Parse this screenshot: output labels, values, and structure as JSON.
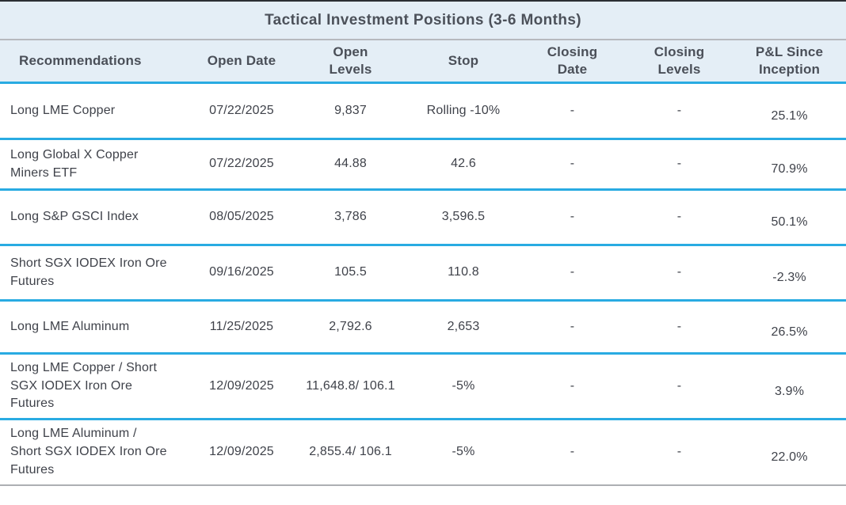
{
  "title": "Tactical Investment Positions (3-6 Months)",
  "columns": [
    "Recommendations",
    "Open Date",
    "Open\nLevels",
    "Stop",
    "Closing\nDate",
    "Closing\nLevels",
    "P&L Since\nInception"
  ],
  "rows": [
    {
      "recommendation": "Long LME Copper",
      "open_date": "07/22/2025",
      "open_levels": "9,837",
      "stop": "Rolling -10%",
      "closing_date": "-",
      "closing_levels": "-",
      "pnl": "25.1%"
    },
    {
      "recommendation": "Long Global X Copper\nMiners ETF",
      "open_date": "07/22/2025",
      "open_levels": "44.88",
      "stop": "42.6",
      "closing_date": "-",
      "closing_levels": "-",
      "pnl": "70.9%"
    },
    {
      "recommendation": "Long S&P GSCI Index",
      "open_date": "08/05/2025",
      "open_levels": "3,786",
      "stop": "3,596.5",
      "closing_date": "-",
      "closing_levels": "-",
      "pnl": "50.1%"
    },
    {
      "recommendation": "Short SGX IODEX Iron Ore\nFutures",
      "open_date": "09/16/2025",
      "open_levels": "105.5",
      "stop": "110.8",
      "closing_date": "-",
      "closing_levels": "-",
      "pnl": "-2.3%"
    },
    {
      "recommendation": "Long LME Aluminum",
      "open_date": "11/25/2025",
      "open_levels": "2,792.6",
      "stop": "2,653",
      "closing_date": "-",
      "closing_levels": "-",
      "pnl": "26.5%"
    },
    {
      "recommendation": "Long LME Copper / Short\nSGX IODEX Iron Ore\nFutures",
      "open_date": "12/09/2025",
      "open_levels": "11,648.8/ 106.1",
      "stop": "-5%",
      "closing_date": "-",
      "closing_levels": "-",
      "pnl": "3.9%"
    },
    {
      "recommendation": "Long LME Aluminum /\nShort SGX IODEX Iron Ore\nFutures",
      "open_date": "12/09/2025",
      "open_levels": "2,855.4/ 106.1",
      "stop": "-5%",
      "closing_date": "-",
      "closing_levels": "-",
      "pnl": "22.0%"
    }
  ],
  "colors": {
    "header_background": "#E4EEF6",
    "row_divider_cyan": "#29ABE2",
    "top_border": "#2B2E33",
    "title_divider_gray": "#B6B9BE",
    "bottom_border_gray": "#ADAFB3",
    "title_text": "#4C515A",
    "header_text": "#4A4F58",
    "body_text": "#3F424A"
  }
}
